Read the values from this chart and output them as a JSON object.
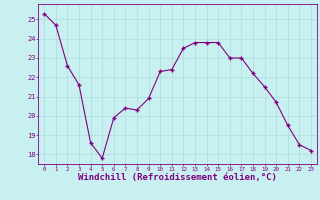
{
  "x": [
    0,
    1,
    2,
    3,
    4,
    5,
    6,
    7,
    8,
    9,
    10,
    11,
    12,
    13,
    14,
    15,
    16,
    17,
    18,
    19,
    20,
    21,
    22,
    23
  ],
  "y": [
    25.3,
    24.7,
    22.6,
    21.6,
    18.6,
    17.8,
    19.9,
    20.4,
    20.3,
    20.9,
    22.3,
    22.4,
    23.5,
    23.8,
    23.8,
    23.8,
    23.0,
    23.0,
    22.2,
    21.5,
    20.7,
    19.5,
    18.5,
    18.2
  ],
  "line_color": "#800080",
  "marker": "+",
  "background_color": "#c8f0f0",
  "grid_color": "#aadddd",
  "xlabel": "Windchill (Refroidissement éolien,°C)",
  "xlabel_fontsize": 6.5,
  "ylabel_ticks": [
    18,
    19,
    20,
    21,
    22,
    23,
    24,
    25
  ],
  "xtick_labels": [
    "0",
    "1",
    "2",
    "3",
    "4",
    "5",
    "6",
    "7",
    "8",
    "9",
    "10",
    "11",
    "12",
    "13",
    "14",
    "15",
    "16",
    "17",
    "18",
    "19",
    "20",
    "21",
    "22",
    "23"
  ],
  "ylim": [
    17.5,
    25.8
  ],
  "xlim": [
    -0.5,
    23.5
  ],
  "tick_color": "#800080",
  "spine_color": "#800080"
}
